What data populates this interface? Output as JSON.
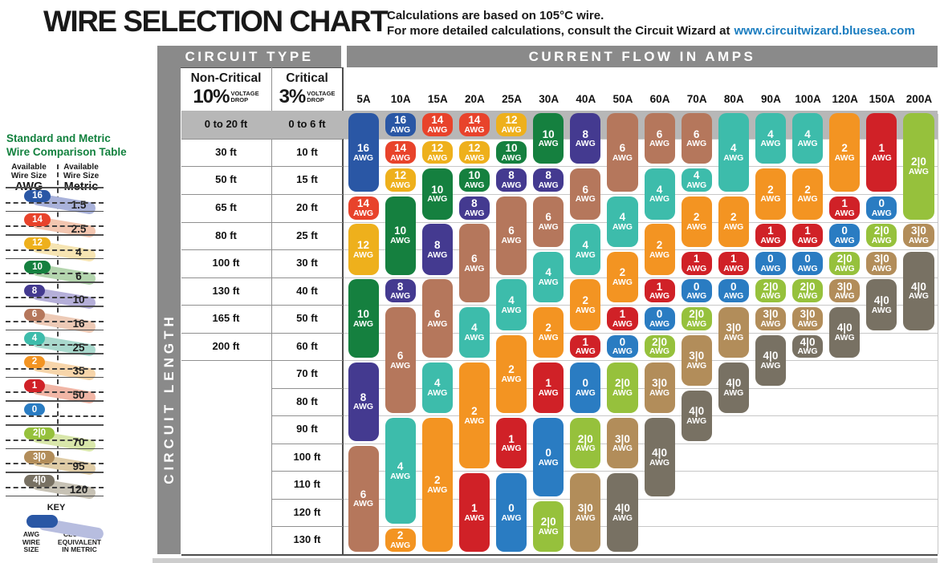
{
  "header": {
    "title": "WIRE SELECTION CHART",
    "note_line1": "Calculations are based on 105°C wire.",
    "note_line2": "For more detailed calculations, consult the Circuit Wizard at",
    "note_link": "www.circuitwizard.bluesea.com",
    "link_color": "#1a7dc0"
  },
  "table_header": {
    "circuit_type": "CIRCUIT TYPE",
    "current_flow": "CURRENT FLOW IN AMPS",
    "circuit_length": "CIRCUIT LENGTH",
    "non_critical": {
      "label": "Non-Critical",
      "pct": "10%",
      "drop": "VOLTAGE\nDROP"
    },
    "critical": {
      "label": "Critical",
      "pct": "3%",
      "drop": "VOLTAGE\nDROP"
    }
  },
  "comparison": {
    "title": "Standard and Metric\nWire Comparison Table",
    "title_color": "#12813e",
    "awg_header": "Available\nWire Size",
    "awg_header_bold": "AWG",
    "metric_header": "Available\nWire Size",
    "metric_header_bold": "Metric",
    "rows": [
      {
        "awg": "16",
        "metric": "1.5"
      },
      {
        "awg": "14",
        "metric": "2.5"
      },
      {
        "awg": "12",
        "metric": "4"
      },
      {
        "awg": "10",
        "metric": "6"
      },
      {
        "awg": "8",
        "metric": "10"
      },
      {
        "awg": "6",
        "metric": "16"
      },
      {
        "awg": "4",
        "metric": "25"
      },
      {
        "awg": "2",
        "metric": "35"
      },
      {
        "awg": "1",
        "metric": "50"
      },
      {
        "awg": "0",
        "metric": ""
      },
      {
        "awg": "2|0",
        "metric": "70"
      },
      {
        "awg": "3|0",
        "metric": "95"
      },
      {
        "awg": "4|0",
        "metric": "120"
      }
    ],
    "key": {
      "label": "KEY",
      "awg_caption": "AWG\nWIRE\nSIZE",
      "metric_caption": "CLOSEST\nEQUIVALENT\nIN METRIC",
      "pill_color": "#2a57a5",
      "swoosh_color": "#b7bddf"
    }
  },
  "chart_data": {
    "type": "table",
    "title": "WIRE SELECTION CHART",
    "x_axis_label": "CURRENT FLOW IN AMPS",
    "y_axis_label": "CIRCUIT LENGTH",
    "awg_suffix": "AWG",
    "amp_columns": [
      "5A",
      "10A",
      "15A",
      "20A",
      "25A",
      "30A",
      "40A",
      "50A",
      "60A",
      "70A",
      "80A",
      "90A",
      "100A",
      "120A",
      "150A",
      "200A"
    ],
    "length_rows": [
      {
        "non_critical": "0 to 20 ft",
        "critical": "0 to 6 ft",
        "highlight": true
      },
      {
        "non_critical": "30 ft",
        "critical": "10 ft"
      },
      {
        "non_critical": "50 ft",
        "critical": "15 ft"
      },
      {
        "non_critical": "65 ft",
        "critical": "20 ft"
      },
      {
        "non_critical": "80 ft",
        "critical": "25 ft"
      },
      {
        "non_critical": "100 ft",
        "critical": "30 ft"
      },
      {
        "non_critical": "130 ft",
        "critical": "40 ft"
      },
      {
        "non_critical": "165 ft",
        "critical": "50 ft"
      },
      {
        "non_critical": "200 ft",
        "critical": "60 ft"
      },
      {
        "non_critical": "",
        "critical": "70 ft"
      },
      {
        "non_critical": "",
        "critical": "80 ft"
      },
      {
        "non_critical": "",
        "critical": "90 ft"
      },
      {
        "non_critical": "",
        "critical": "100 ft"
      },
      {
        "non_critical": "",
        "critical": "110 ft"
      },
      {
        "non_critical": "",
        "critical": "120 ft"
      },
      {
        "non_critical": "",
        "critical": "130 ft"
      }
    ],
    "awg_colors": {
      "16": "#2a57a5",
      "14": "#e8432b",
      "12": "#eeb01c",
      "10": "#15803f",
      "8": "#443a90",
      "6": "#b5775c",
      "4": "#3dbcab",
      "2": "#f39422",
      "1": "#d02127",
      "0": "#2a7cc2",
      "2|0": "#96c13c",
      "3|0": "#b28d5a",
      "4|0": "#787163"
    },
    "awg_light_colors": {
      "16": "#a9b2da",
      "14": "#f3c6b0",
      "12": "#f6e4b2",
      "10": "#b4d5ae",
      "8": "#b5afd9",
      "6": "#edcab6",
      "4": "#a9d9cd",
      "2": "#f7d5aa",
      "1": "#f1b6a6",
      "0": "#a9cbe8",
      "2|0": "#d8e6aa",
      "3|0": "#dfcca6",
      "4|0": "#c7c2b5"
    },
    "cells": {
      "5A": [
        {
          "awg": "16",
          "from": 0,
          "to": 2
        },
        {
          "awg": "14",
          "from": 3,
          "to": 3
        },
        {
          "awg": "12",
          "from": 4,
          "to": 5
        },
        {
          "awg": "10",
          "from": 6,
          "to": 8
        },
        {
          "awg": "8",
          "from": 9,
          "to": 11
        },
        {
          "awg": "6",
          "from": 12,
          "to": 15
        }
      ],
      "10A": [
        {
          "awg": "16",
          "from": 0,
          "to": 0
        },
        {
          "awg": "14",
          "from": 1,
          "to": 1
        },
        {
          "awg": "12",
          "from": 2,
          "to": 2
        },
        {
          "awg": "10",
          "from": 3,
          "to": 5
        },
        {
          "awg": "8",
          "from": 6,
          "to": 6
        },
        {
          "awg": "6",
          "from": 7,
          "to": 10
        },
        {
          "awg": "4",
          "from": 11,
          "to": 14
        },
        {
          "awg": "2",
          "from": 15,
          "to": 15
        }
      ],
      "15A": [
        {
          "awg": "14",
          "from": 0,
          "to": 0
        },
        {
          "awg": "12",
          "from": 1,
          "to": 1
        },
        {
          "awg": "10",
          "from": 2,
          "to": 3
        },
        {
          "awg": "8",
          "from": 4,
          "to": 5
        },
        {
          "awg": "6",
          "from": 6,
          "to": 8
        },
        {
          "awg": "4",
          "from": 9,
          "to": 10
        },
        {
          "awg": "2",
          "from": 11,
          "to": 15
        }
      ],
      "20A": [
        {
          "awg": "14",
          "from": 0,
          "to": 0
        },
        {
          "awg": "12",
          "from": 1,
          "to": 1
        },
        {
          "awg": "10",
          "from": 2,
          "to": 2
        },
        {
          "awg": "8",
          "from": 3,
          "to": 3
        },
        {
          "awg": "6",
          "from": 4,
          "to": 6
        },
        {
          "awg": "4",
          "from": 7,
          "to": 8
        },
        {
          "awg": "2",
          "from": 9,
          "to": 12
        },
        {
          "awg": "1",
          "from": 13,
          "to": 15
        }
      ],
      "25A": [
        {
          "awg": "12",
          "from": 0,
          "to": 0
        },
        {
          "awg": "10",
          "from": 1,
          "to": 1
        },
        {
          "awg": "8",
          "from": 2,
          "to": 2
        },
        {
          "awg": "6",
          "from": 3,
          "to": 5
        },
        {
          "awg": "4",
          "from": 6,
          "to": 7
        },
        {
          "awg": "2",
          "from": 8,
          "to": 10
        },
        {
          "awg": "1",
          "from": 11,
          "to": 12
        },
        {
          "awg": "0",
          "from": 13,
          "to": 15
        }
      ],
      "30A": [
        {
          "awg": "10",
          "from": 0,
          "to": 1
        },
        {
          "awg": "8",
          "from": 2,
          "to": 2
        },
        {
          "awg": "6",
          "from": 3,
          "to": 4
        },
        {
          "awg": "4",
          "from": 5,
          "to": 6
        },
        {
          "awg": "2",
          "from": 7,
          "to": 8
        },
        {
          "awg": "1",
          "from": 9,
          "to": 10
        },
        {
          "awg": "0",
          "from": 11,
          "to": 13
        },
        {
          "awg": "2|0",
          "from": 14,
          "to": 15
        }
      ],
      "40A": [
        {
          "awg": "8",
          "from": 0,
          "to": 1
        },
        {
          "awg": "6",
          "from": 2,
          "to": 3
        },
        {
          "awg": "4",
          "from": 4,
          "to": 5
        },
        {
          "awg": "2",
          "from": 6,
          "to": 7
        },
        {
          "awg": "1",
          "from": 8,
          "to": 8
        },
        {
          "awg": "0",
          "from": 9,
          "to": 10
        },
        {
          "awg": "2|0",
          "from": 11,
          "to": 12
        },
        {
          "awg": "3|0",
          "from": 13,
          "to": 15
        }
      ],
      "50A": [
        {
          "awg": "6",
          "from": 0,
          "to": 2
        },
        {
          "awg": "4",
          "from": 3,
          "to": 4
        },
        {
          "awg": "2",
          "from": 5,
          "to": 6
        },
        {
          "awg": "1",
          "from": 7,
          "to": 7
        },
        {
          "awg": "0",
          "from": 8,
          "to": 8
        },
        {
          "awg": "2|0",
          "from": 9,
          "to": 10
        },
        {
          "awg": "3|0",
          "from": 11,
          "to": 12
        },
        {
          "awg": "4|0",
          "from": 13,
          "to": 15
        }
      ],
      "60A": [
        {
          "awg": "6",
          "from": 0,
          "to": 1
        },
        {
          "awg": "4",
          "from": 2,
          "to": 3
        },
        {
          "awg": "2",
          "from": 4,
          "to": 5
        },
        {
          "awg": "1",
          "from": 6,
          "to": 6
        },
        {
          "awg": "0",
          "from": 7,
          "to": 7
        },
        {
          "awg": "2|0",
          "from": 8,
          "to": 8
        },
        {
          "awg": "3|0",
          "from": 9,
          "to": 10
        },
        {
          "awg": "4|0",
          "from": 11,
          "to": 13
        }
      ],
      "70A": [
        {
          "awg": "6",
          "from": 0,
          "to": 1
        },
        {
          "awg": "4",
          "from": 2,
          "to": 2
        },
        {
          "awg": "2",
          "from": 3,
          "to": 4
        },
        {
          "awg": "1",
          "from": 5,
          "to": 5
        },
        {
          "awg": "0",
          "from": 6,
          "to": 6
        },
        {
          "awg": "2|0",
          "from": 7,
          "to": 7
        },
        {
          "awg": "3|0",
          "from": 8,
          "to": 9
        },
        {
          "awg": "4|0",
          "from": 10,
          "to": 11
        }
      ],
      "80A": [
        {
          "awg": "4",
          "from": 0,
          "to": 2
        },
        {
          "awg": "2",
          "from": 3,
          "to": 4
        },
        {
          "awg": "1",
          "from": 5,
          "to": 5
        },
        {
          "awg": "0",
          "from": 6,
          "to": 6
        },
        {
          "awg": "3|0",
          "from": 7,
          "to": 8
        },
        {
          "awg": "4|0",
          "from": 9,
          "to": 10
        }
      ],
      "90A": [
        {
          "awg": "4",
          "from": 0,
          "to": 1
        },
        {
          "awg": "2",
          "from": 2,
          "to": 3
        },
        {
          "awg": "1",
          "from": 4,
          "to": 4
        },
        {
          "awg": "0",
          "from": 5,
          "to": 5
        },
        {
          "awg": "2|0",
          "from": 6,
          "to": 6
        },
        {
          "awg": "3|0",
          "from": 7,
          "to": 7
        },
        {
          "awg": "4|0",
          "from": 8,
          "to": 9
        }
      ],
      "100A": [
        {
          "awg": "4",
          "from": 0,
          "to": 1
        },
        {
          "awg": "2",
          "from": 2,
          "to": 3
        },
        {
          "awg": "1",
          "from": 4,
          "to": 4
        },
        {
          "awg": "0",
          "from": 5,
          "to": 5
        },
        {
          "awg": "2|0",
          "from": 6,
          "to": 6
        },
        {
          "awg": "3|0",
          "from": 7,
          "to": 7
        },
        {
          "awg": "4|0",
          "from": 8,
          "to": 8
        }
      ],
      "120A": [
        {
          "awg": "2",
          "from": 0,
          "to": 2
        },
        {
          "awg": "1",
          "from": 3,
          "to": 3
        },
        {
          "awg": "0",
          "from": 4,
          "to": 4
        },
        {
          "awg": "2|0",
          "from": 5,
          "to": 5
        },
        {
          "awg": "3|0",
          "from": 6,
          "to": 6
        },
        {
          "awg": "4|0",
          "from": 7,
          "to": 8
        }
      ],
      "150A": [
        {
          "awg": "1",
          "from": 0,
          "to": 2
        },
        {
          "awg": "0",
          "from": 3,
          "to": 3
        },
        {
          "awg": "2|0",
          "from": 4,
          "to": 4
        },
        {
          "awg": "3|0",
          "from": 5,
          "to": 5
        },
        {
          "awg": "4|0",
          "from": 6,
          "to": 7
        }
      ],
      "200A": [
        {
          "awg": "2|0",
          "from": 0,
          "to": 3
        },
        {
          "awg": "3|0",
          "from": 4,
          "to": 4
        },
        {
          "awg": "4|0",
          "from": 5,
          "to": 7
        }
      ]
    }
  }
}
